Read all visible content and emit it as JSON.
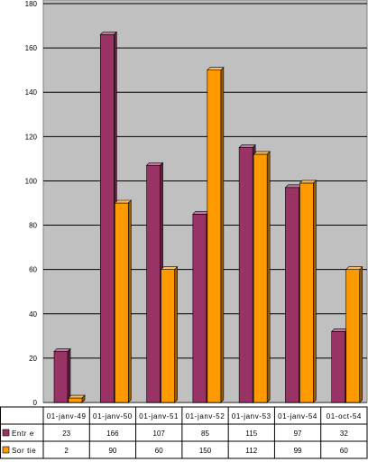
{
  "chart_data": {
    "type": "bar",
    "categories": [
      "01-janv-49",
      "01-janv-50",
      "01-janv-51",
      "01-janv-52",
      "01-janv-53",
      "01-janv-54",
      "01-oct-54"
    ],
    "series": [
      {
        "name": "Entr e",
        "color": "#993366",
        "values": [
          23,
          166,
          107,
          85,
          115,
          97,
          32
        ]
      },
      {
        "name": "Sor tie",
        "color": "#ff9900",
        "values": [
          2,
          90,
          60,
          150,
          112,
          99,
          60
        ]
      }
    ],
    "yticks": [
      "0",
      "20",
      "40",
      "60",
      "80",
      "100",
      "120",
      "140",
      "160",
      "180"
    ],
    "ylim": [
      0,
      180
    ],
    "grid": true,
    "legend": "data-table",
    "plot_background": "#c0c0c0"
  }
}
